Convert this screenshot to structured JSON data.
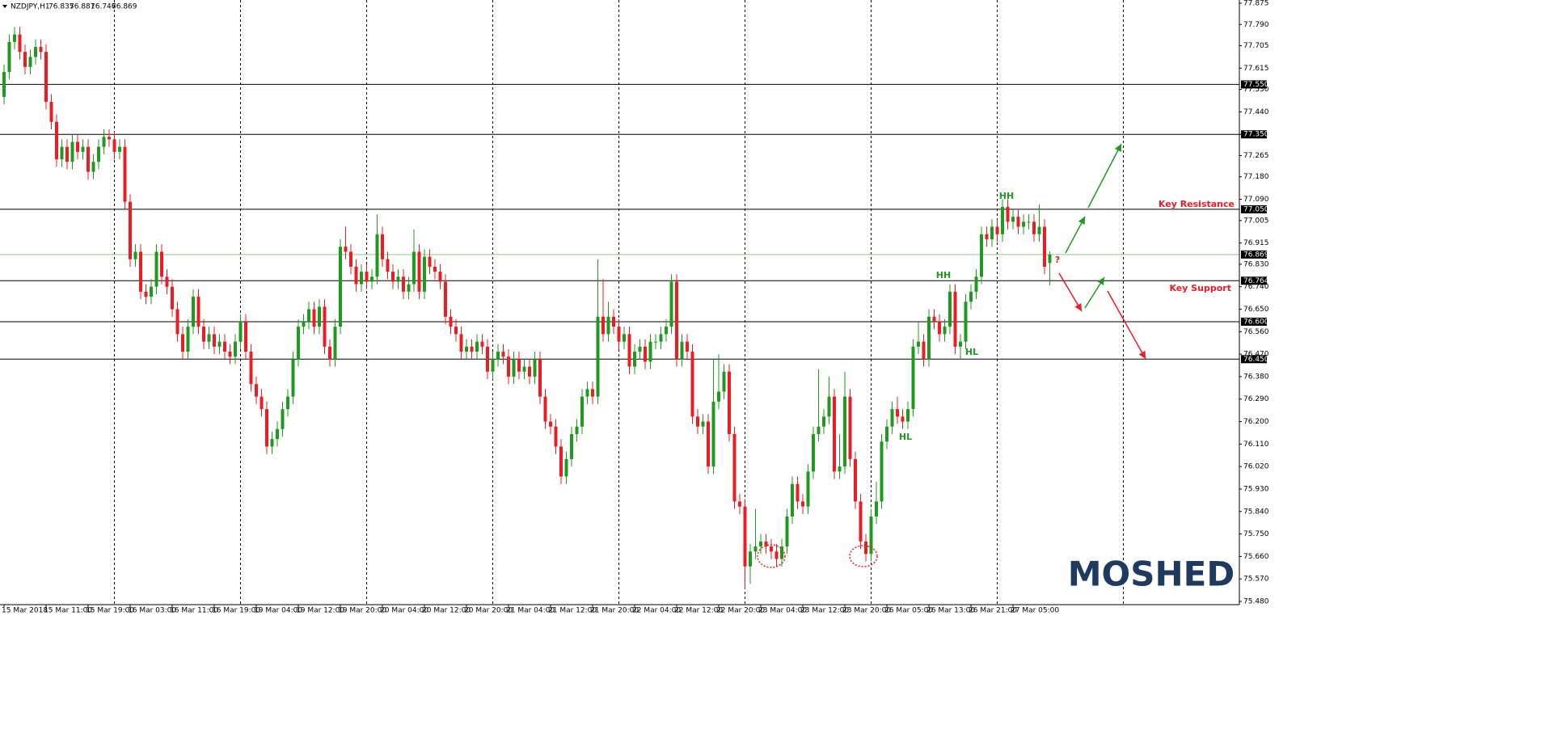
{
  "chart_data": {
    "type": "candlestick",
    "symbol": "NZDJPY,H1",
    "up_color": "#1e9b1e",
    "down_color": "#ec1c24",
    "ylim": [
      75.48,
      77.875
    ],
    "yticks": [
      77.875,
      {
        "value": 77.79,
        "label": "77.790"
      },
      77.705,
      77.615,
      {
        "value": 77.53,
        "label": "77.530"
      },
      {
        "value": 77.44,
        "label": "77.440"
      },
      {
        "value": 77.35,
        "label": "77.350"
      },
      77.265,
      {
        "value": 77.18,
        "label": "77.180"
      },
      {
        "value": 77.09,
        "label": "77.090"
      },
      77.005,
      76.915,
      {
        "value": 76.83,
        "label": "76.830"
      },
      {
        "value": 76.74,
        "label": "76.740"
      },
      {
        "value": 76.65,
        "label": "76.650"
      },
      {
        "value": 76.56,
        "label": "76.560"
      },
      {
        "value": 76.47,
        "label": "76.470"
      },
      {
        "value": 76.38,
        "label": "76.380"
      },
      {
        "value": 76.29,
        "label": "76.290"
      },
      {
        "value": 76.2,
        "label": "76.200"
      },
      {
        "value": 76.11,
        "label": "76.110"
      },
      {
        "value": 76.02,
        "label": "76.020"
      },
      {
        "value": 75.93,
        "label": "75.930"
      },
      {
        "value": 75.84,
        "label": "75.840"
      },
      {
        "value": 75.75,
        "label": "75.750"
      },
      {
        "value": 75.66,
        "label": "75.660"
      },
      {
        "value": 75.57,
        "label": "75.570"
      },
      {
        "value": 75.48,
        "label": "75.480"
      }
    ],
    "levels": [
      {
        "value": 77.55,
        "label": "77.550"
      },
      {
        "value": 77.35,
        "label": "77.350"
      },
      {
        "value": 77.05,
        "label": "77.050"
      },
      76.764,
      {
        "value": 76.6,
        "label": "76.600"
      },
      {
        "value": 76.45,
        "label": "76.450"
      }
    ],
    "annotations": {
      "key_resistance": "Key Resistance",
      "key_support": "Key Support",
      "hh_high": "HH",
      "hh_mid": "HH",
      "hl_right": "HL",
      "hl_left": "HL",
      "question": "?"
    },
    "logo": "MOSHED",
    "categories": [
      "15 Mar 2018",
      null,
      null,
      null,
      null,
      null,
      null,
      null,
      "15 Mar 11:00",
      null,
      null,
      null,
      null,
      null,
      null,
      null,
      "15 Mar 19:00",
      null,
      null,
      null,
      null,
      null,
      null,
      null,
      "16 Mar 03:00",
      null,
      null,
      null,
      null,
      null,
      null,
      null,
      "16 Mar 11:00",
      null,
      null,
      null,
      null,
      null,
      null,
      null,
      "16 Mar 19:00",
      null,
      null,
      null,
      null,
      null,
      null,
      null,
      "19 Mar 04:00",
      null,
      null,
      null,
      null,
      null,
      null,
      null,
      "19 Mar 12:00",
      null,
      null,
      null,
      null,
      null,
      null,
      null,
      "19 Mar 20:00",
      null,
      null,
      null,
      null,
      null,
      null,
      null,
      "20 Mar 04:00",
      null,
      null,
      null,
      null,
      null,
      null,
      null,
      "20 Mar 12:00",
      null,
      null,
      null,
      null,
      null,
      null,
      null,
      "20 Mar 20:00",
      null,
      null,
      null,
      null,
      null,
      null,
      null,
      "21 Mar 04:00",
      null,
      null,
      null,
      null,
      null,
      null,
      null,
      "21 Mar 12:00",
      null,
      null,
      null,
      null,
      null,
      null,
      null,
      "21 Mar 20:00",
      null,
      null,
      null,
      null,
      null,
      null,
      null,
      "22 Mar 04:00",
      null,
      null,
      null,
      null,
      null,
      null,
      null,
      "22 Mar 12:00",
      null,
      null,
      null,
      null,
      null,
      null,
      null,
      "22 Mar 20:00",
      null,
      null,
      null,
      null,
      null,
      null,
      null,
      "23 Mar 04:00",
      null,
      null,
      null,
      null,
      null,
      null,
      null,
      "23 Mar 12:00",
      null,
      null,
      null,
      null,
      null,
      null,
      null,
      "23 Mar 20:00",
      null,
      null,
      null,
      null,
      null,
      null,
      null,
      "26 Mar 05:00",
      null,
      null,
      null,
      null,
      null,
      null,
      null,
      "26 Mar 13:00",
      null,
      null,
      null,
      null,
      null,
      null,
      null,
      "26 Mar 21:00",
      null,
      null,
      null,
      null,
      null,
      null,
      null,
      "27 Mar 05:00",
      null,
      null,
      null,
      null,
      null,
      null,
      null
    ],
    "open": [
      77.5,
      77.6,
      77.72,
      77.75,
      77.68,
      77.62,
      77.66,
      77.7,
      77.68,
      77.48,
      77.4,
      77.25,
      77.3,
      77.24,
      77.32,
      77.28,
      77.3,
      77.2,
      77.24,
      77.3,
      77.34,
      77.33,
      77.28,
      77.3,
      77.08,
      76.85,
      76.88,
      76.72,
      76.7,
      76.74,
      76.88,
      76.78,
      76.74,
      76.65,
      76.55,
      76.48,
      76.58,
      76.7,
      76.58,
      76.52,
      76.55,
      76.5,
      76.52,
      76.48,
      76.46,
      76.52,
      76.6,
      76.48,
      76.35,
      76.3,
      76.25,
      76.1,
      76.13,
      76.17,
      76.25,
      76.3,
      76.45,
      76.58,
      76.6,
      76.65,
      76.58,
      76.66,
      76.5,
      76.45,
      76.58,
      76.9,
      76.88,
      76.82,
      76.75,
      76.8,
      76.76,
      76.78,
      76.95,
      76.85,
      76.8,
      76.76,
      76.78,
      76.72,
      76.75,
      76.88,
      76.72,
      76.86,
      76.82,
      76.8,
      76.76,
      76.62,
      76.58,
      76.55,
      76.48,
      76.5,
      76.48,
      76.52,
      76.5,
      76.4,
      76.45,
      76.48,
      76.46,
      76.38,
      76.45,
      76.4,
      76.42,
      76.38,
      76.45,
      76.3,
      76.2,
      76.18,
      76.1,
      75.98,
      76.05,
      76.15,
      76.18,
      76.3,
      76.33,
      76.3,
      76.62,
      76.55,
      76.62,
      76.58,
      76.52,
      76.55,
      76.42,
      76.48,
      76.5,
      76.44,
      76.52,
      76.52,
      76.55,
      76.58,
      76.76,
      76.45,
      76.52,
      76.48,
      76.22,
      76.18,
      76.2,
      76.02,
      76.28,
      76.32,
      76.4,
      76.15,
      75.88,
      75.86,
      75.62,
      75.68,
      75.7,
      75.72,
      75.7,
      75.68,
      75.65,
      75.7,
      75.82,
      75.95,
      75.88,
      75.86,
      76.0,
      76.15,
      76.18,
      76.22,
      76.3,
      76.0,
      76.02,
      76.3,
      76.05,
      75.88,
      75.72,
      75.67,
      75.82,
      75.88,
      76.12,
      76.18,
      76.25,
      76.22,
      76.2,
      76.25,
      76.5,
      76.52,
      76.45,
      76.62,
      76.6,
      76.55,
      76.58,
      76.72,
      76.5,
      76.52,
      76.68,
      76.72,
      76.78,
      76.95,
      76.93,
      76.98,
      76.95,
      77.06,
      77.0,
      77.02,
      76.98,
      77.0,
      77.0,
      76.95,
      76.98,
      76.835
    ],
    "high": [
      77.63,
      77.75,
      77.78,
      77.78,
      77.71,
      77.69,
      77.73,
      77.73,
      77.71,
      77.51,
      77.43,
      77.33,
      77.33,
      77.35,
      77.35,
      77.33,
      77.33,
      77.27,
      77.33,
      77.37,
      77.37,
      77.36,
      77.33,
      77.33,
      77.11,
      76.91,
      76.91,
      76.75,
      76.77,
      76.91,
      76.91,
      76.81,
      76.77,
      76.68,
      76.58,
      76.61,
      76.73,
      76.73,
      76.61,
      76.58,
      76.58,
      76.55,
      76.55,
      76.51,
      76.55,
      76.63,
      76.63,
      76.51,
      76.38,
      76.33,
      76.28,
      76.16,
      76.2,
      76.28,
      76.33,
      76.48,
      76.61,
      76.63,
      76.68,
      76.68,
      76.69,
      76.69,
      76.53,
      76.61,
      76.93,
      76.98,
      76.91,
      76.85,
      76.83,
      76.83,
      76.81,
      77.03,
      76.98,
      76.88,
      76.83,
      76.81,
      76.81,
      76.78,
      76.97,
      76.91,
      76.89,
      76.89,
      76.85,
      76.83,
      76.79,
      76.65,
      76.61,
      76.58,
      76.53,
      76.53,
      76.55,
      76.55,
      76.53,
      76.48,
      76.51,
      76.51,
      76.49,
      76.48,
      76.48,
      76.45,
      76.45,
      76.48,
      76.48,
      76.33,
      76.23,
      76.21,
      76.13,
      76.08,
      76.18,
      76.21,
      76.33,
      76.36,
      76.36,
      76.85,
      76.77,
      76.68,
      76.65,
      76.61,
      76.58,
      76.58,
      76.51,
      76.53,
      76.53,
      76.55,
      76.55,
      76.58,
      76.61,
      76.79,
      76.79,
      76.55,
      76.55,
      76.51,
      76.25,
      76.23,
      76.23,
      76.45,
      76.47,
      76.43,
      76.43,
      76.18,
      75.91,
      75.89,
      75.71,
      75.85,
      75.75,
      75.75,
      75.73,
      75.71,
      75.73,
      75.85,
      75.98,
      75.98,
      75.91,
      76.03,
      76.18,
      76.41,
      76.25,
      76.38,
      76.33,
      76.15,
      76.4,
      76.33,
      76.08,
      75.91,
      75.75,
      75.85,
      75.96,
      76.15,
      76.21,
      76.28,
      76.3,
      76.25,
      76.28,
      76.53,
      76.6,
      76.55,
      76.65,
      76.65,
      76.63,
      76.61,
      76.75,
      76.75,
      76.55,
      76.71,
      76.75,
      76.81,
      76.98,
      76.98,
      77.01,
      77.01,
      77.09,
      77.09,
      77.05,
      77.05,
      77.03,
      77.03,
      77.03,
      77.07,
      77.01,
      76.881
    ],
    "low": [
      77.47,
      77.57,
      77.69,
      77.65,
      77.59,
      77.59,
      77.63,
      77.65,
      77.45,
      77.37,
      77.22,
      77.22,
      77.21,
      77.21,
      77.25,
      77.25,
      77.17,
      77.17,
      77.21,
      77.27,
      77.3,
      77.25,
      77.25,
      77.05,
      76.82,
      76.82,
      76.69,
      76.67,
      76.67,
      76.71,
      76.75,
      76.71,
      76.62,
      76.52,
      76.45,
      76.45,
      76.55,
      76.55,
      76.49,
      76.49,
      76.47,
      76.47,
      76.45,
      76.43,
      76.43,
      76.49,
      76.45,
      76.32,
      76.27,
      76.22,
      76.07,
      76.07,
      76.1,
      76.14,
      76.22,
      76.27,
      76.42,
      76.55,
      76.57,
      76.55,
      76.55,
      76.47,
      76.42,
      76.42,
      76.55,
      76.85,
      76.79,
      76.72,
      76.72,
      76.73,
      76.73,
      76.75,
      76.82,
      76.77,
      76.73,
      76.73,
      76.69,
      76.69,
      76.72,
      76.69,
      76.69,
      76.79,
      76.77,
      76.73,
      76.59,
      76.55,
      76.52,
      76.45,
      76.45,
      76.45,
      76.45,
      76.47,
      76.37,
      76.37,
      76.42,
      76.43,
      76.35,
      76.35,
      76.37,
      76.37,
      76.35,
      76.35,
      76.27,
      76.17,
      76.15,
      76.07,
      75.95,
      75.95,
      76.02,
      76.12,
      76.15,
      76.27,
      76.27,
      76.27,
      76.52,
      76.52,
      76.55,
      76.49,
      76.49,
      76.39,
      76.39,
      76.45,
      76.41,
      76.41,
      76.49,
      76.49,
      76.52,
      76.55,
      76.42,
      76.42,
      76.45,
      76.19,
      76.15,
      76.15,
      75.99,
      75.99,
      76.25,
      76.29,
      76.12,
      75.85,
      75.83,
      75.53,
      75.55,
      75.65,
      75.67,
      75.67,
      75.65,
      75.62,
      75.62,
      75.67,
      75.79,
      75.85,
      75.83,
      75.83,
      75.97,
      76.12,
      76.15,
      76.19,
      75.97,
      75.97,
      75.99,
      76.02,
      75.85,
      75.69,
      75.64,
      75.64,
      75.79,
      75.85,
      76.09,
      76.15,
      76.19,
      76.17,
      76.17,
      76.22,
      76.47,
      76.42,
      76.42,
      76.57,
      76.52,
      76.52,
      76.55,
      76.47,
      76.45,
      76.49,
      76.65,
      76.69,
      76.75,
      76.9,
      76.9,
      76.92,
      76.92,
      76.97,
      76.97,
      76.95,
      76.95,
      76.97,
      76.92,
      76.92,
      76.79,
      76.746
    ],
    "close": [
      77.6,
      77.72,
      77.75,
      77.68,
      77.62,
      77.66,
      77.7,
      77.68,
      77.48,
      77.4,
      77.25,
      77.3,
      77.24,
      77.32,
      77.28,
      77.3,
      77.2,
      77.24,
      77.3,
      77.34,
      77.33,
      77.28,
      77.3,
      77.08,
      76.85,
      76.88,
      76.72,
      76.7,
      76.74,
      76.88,
      76.78,
      76.74,
      76.65,
      76.55,
      76.48,
      76.58,
      76.7,
      76.58,
      76.52,
      76.55,
      76.5,
      76.52,
      76.48,
      76.46,
      76.52,
      76.6,
      76.48,
      76.35,
      76.3,
      76.25,
      76.1,
      76.13,
      76.17,
      76.25,
      76.3,
      76.45,
      76.58,
      76.6,
      76.65,
      76.58,
      76.66,
      76.5,
      76.45,
      76.58,
      76.9,
      76.88,
      76.82,
      76.75,
      76.8,
      76.76,
      76.78,
      76.95,
      76.85,
      76.8,
      76.76,
      76.78,
      76.72,
      76.75,
      76.88,
      76.72,
      76.86,
      76.82,
      76.8,
      76.76,
      76.62,
      76.58,
      76.55,
      76.48,
      76.5,
      76.48,
      76.52,
      76.5,
      76.4,
      76.45,
      76.48,
      76.46,
      76.38,
      76.45,
      76.4,
      76.42,
      76.38,
      76.45,
      76.3,
      76.2,
      76.18,
      76.1,
      75.98,
      76.05,
      76.15,
      76.18,
      76.3,
      76.33,
      76.3,
      76.62,
      76.55,
      76.62,
      76.58,
      76.52,
      76.55,
      76.42,
      76.48,
      76.5,
      76.44,
      76.52,
      76.52,
      76.55,
      76.58,
      76.76,
      76.45,
      76.52,
      76.48,
      76.22,
      76.18,
      76.2,
      76.02,
      76.28,
      76.32,
      76.4,
      76.15,
      75.88,
      75.86,
      75.62,
      75.68,
      75.7,
      75.72,
      75.7,
      75.68,
      75.65,
      75.7,
      75.82,
      75.95,
      75.88,
      75.86,
      76.0,
      76.15,
      76.18,
      76.22,
      76.3,
      76.0,
      76.02,
      76.3,
      76.05,
      75.88,
      75.72,
      75.67,
      75.82,
      75.88,
      76.12,
      76.18,
      76.25,
      76.22,
      76.2,
      76.25,
      76.5,
      76.52,
      76.45,
      76.62,
      76.6,
      76.55,
      76.58,
      76.72,
      76.5,
      76.52,
      76.68,
      76.72,
      76.78,
      76.95,
      76.93,
      76.98,
      76.95,
      77.06,
      77.0,
      77.02,
      76.98,
      77.0,
      77.0,
      76.95,
      76.98,
      76.82,
      76.869
    ]
  }
}
